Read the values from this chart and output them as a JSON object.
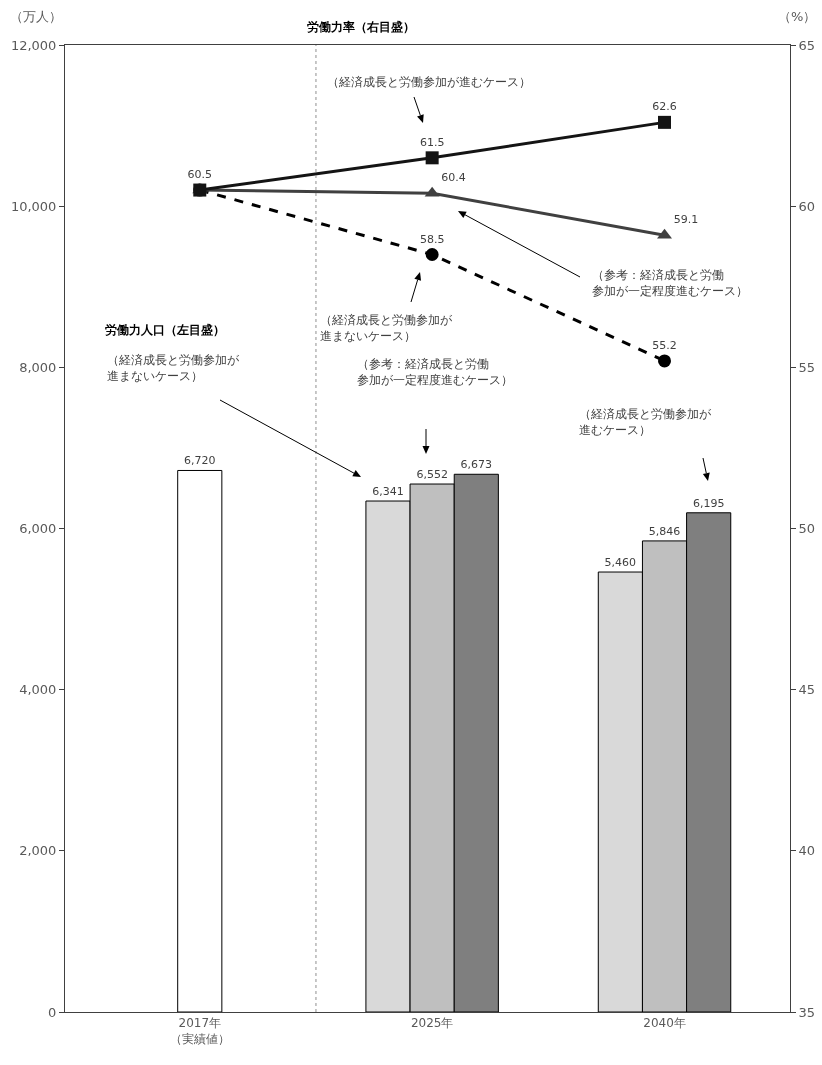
{
  "chart_data": {
    "type": "bar",
    "categories": [
      "2017年（実績値）",
      "2025年",
      "2040年"
    ],
    "ylabel": "（万人）",
    "y2label": "（%）",
    "series": [
      {
        "color": "#ffffff",
        "values": [
          6720,
          null,
          null
        ],
        "value_labels": [
          "6,720",
          null,
          null
        ]
      },
      {
        "color": "#d9d9d9",
        "values": [
          null,
          6341,
          5460
        ],
        "value_labels": [
          null,
          "6,341",
          "5,460"
        ]
      },
      {
        "color": "#bfbfbf",
        "values": [
          null,
          6552,
          5846
        ],
        "value_labels": [
          null,
          "6,552",
          "5,846"
        ]
      },
      {
        "color": "#7f7f7f",
        "values": [
          null,
          6673,
          6195
        ],
        "value_labels": [
          null,
          "6,673",
          "6,195"
        ]
      },
      {
        "type": "line",
        "axis": "y2",
        "color": "#000000",
        "marker": "circle",
        "line_style": "dashed",
        "values": [
          60.5,
          58.5,
          55.2
        ],
        "value_labels": [
          null,
          "58.5",
          "55.2"
        ]
      },
      {
        "type": "line",
        "axis": "y2",
        "color": "#404040",
        "marker": "triangle",
        "line_style": "solid",
        "values": [
          60.5,
          60.4,
          59.1
        ],
        "value_labels": [
          null,
          "60.4",
          "59.1"
        ]
      },
      {
        "type": "line",
        "axis": "y2",
        "color": "#141414",
        "marker": "square",
        "line_style": "solid",
        "values": [
          60.5,
          61.5,
          62.6
        ],
        "value_labels": [
          "60.5",
          "61.5",
          "62.6"
        ]
      }
    ],
    "ylim": [
      0,
      12000
    ],
    "yticks": [
      0,
      {
        "value": 2000,
        "label": "2,000"
      },
      {
        "value": 4000,
        "label": "4,000"
      },
      {
        "value": 6000,
        "label": "6,000"
      },
      {
        "value": 8000,
        "label": "8,000"
      },
      {
        "value": 10000,
        "label": "10,000"
      },
      {
        "value": 12000,
        "label": "12,000"
      }
    ],
    "y2lim": [
      35,
      65
    ],
    "y2ticks": [
      35,
      40,
      45,
      50,
      55,
      60,
      65
    ],
    "annotations": [
      "労働力率（右目盛）",
      "（経済成長と労働参加が進むケース）",
      "（参考：経済成長と労働参加が一定程度進むケース）",
      "（経済成長と労働参加が進まないケース）",
      "労働力人口（左目盛）",
      "（経済成長と労働参加が進まないケース）",
      "（参考：経済成長と労働参加が一定程度進むケース）",
      "（経済成長と労働参加が進むケース）"
    ],
    "grid": false
  }
}
